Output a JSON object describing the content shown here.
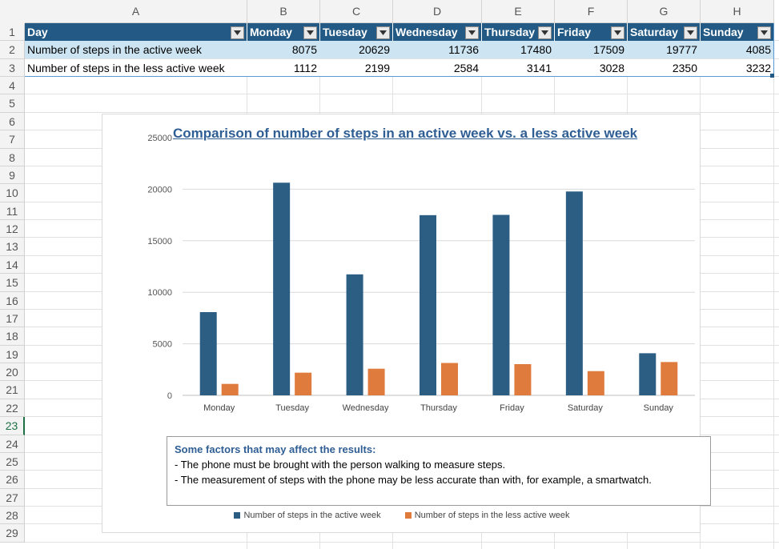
{
  "columns": [
    "A",
    "B",
    "C",
    "D",
    "E",
    "F",
    "G",
    "H"
  ],
  "rows": [
    "1",
    "2",
    "3",
    "4",
    "5",
    "6",
    "7",
    "8",
    "9",
    "10",
    "11",
    "12",
    "13",
    "14",
    "15",
    "16",
    "17",
    "18",
    "19",
    "20",
    "21",
    "22",
    "23",
    "24",
    "25",
    "26",
    "27",
    "28",
    "29"
  ],
  "selected_row": "23",
  "table": {
    "header": [
      "Day",
      "Monday",
      "Tuesday",
      "Wednesday",
      "Thursday",
      "Friday",
      "Saturday",
      "Sunday"
    ],
    "rows": [
      [
        "Number of steps in the active week",
        "8075",
        "20629",
        "11736",
        "17480",
        "17509",
        "19777",
        "4085"
      ],
      [
        "Number of steps in the less active week",
        "1112",
        "2199",
        "2584",
        "3141",
        "3028",
        "2350",
        "3232"
      ]
    ]
  },
  "colors": {
    "header_bg": "#225a85",
    "band": "#cde5f3",
    "series1": "#2c5e84",
    "series2": "#e07b3e",
    "title": "#2f5e94"
  },
  "chart_data": {
    "type": "bar",
    "title": "Comparison of number of steps in an active week vs. a less active week",
    "categories": [
      "Monday",
      "Tuesday",
      "Wednesday",
      "Thursday",
      "Friday",
      "Saturday",
      "Sunday"
    ],
    "series": [
      {
        "name": "Number of steps in the active week",
        "values": [
          8075,
          20629,
          11736,
          17480,
          17509,
          19777,
          4085
        ]
      },
      {
        "name": "Number of steps in the less active week",
        "values": [
          1112,
          2199,
          2584,
          3141,
          3028,
          2350,
          3232
        ]
      }
    ],
    "ylim": [
      0,
      25000
    ],
    "yticks": [
      "0",
      "5000",
      "10000",
      "15000",
      "20000",
      "25000"
    ],
    "grid": true,
    "legend": "bottom"
  },
  "note": {
    "heading": "Some factors that may affect the results:",
    "lines": [
      "- The phone must be brought with the person walking to measure steps.",
      "- The measurement of steps with the phone may be less accurate than with, for example, a smartwatch."
    ]
  }
}
